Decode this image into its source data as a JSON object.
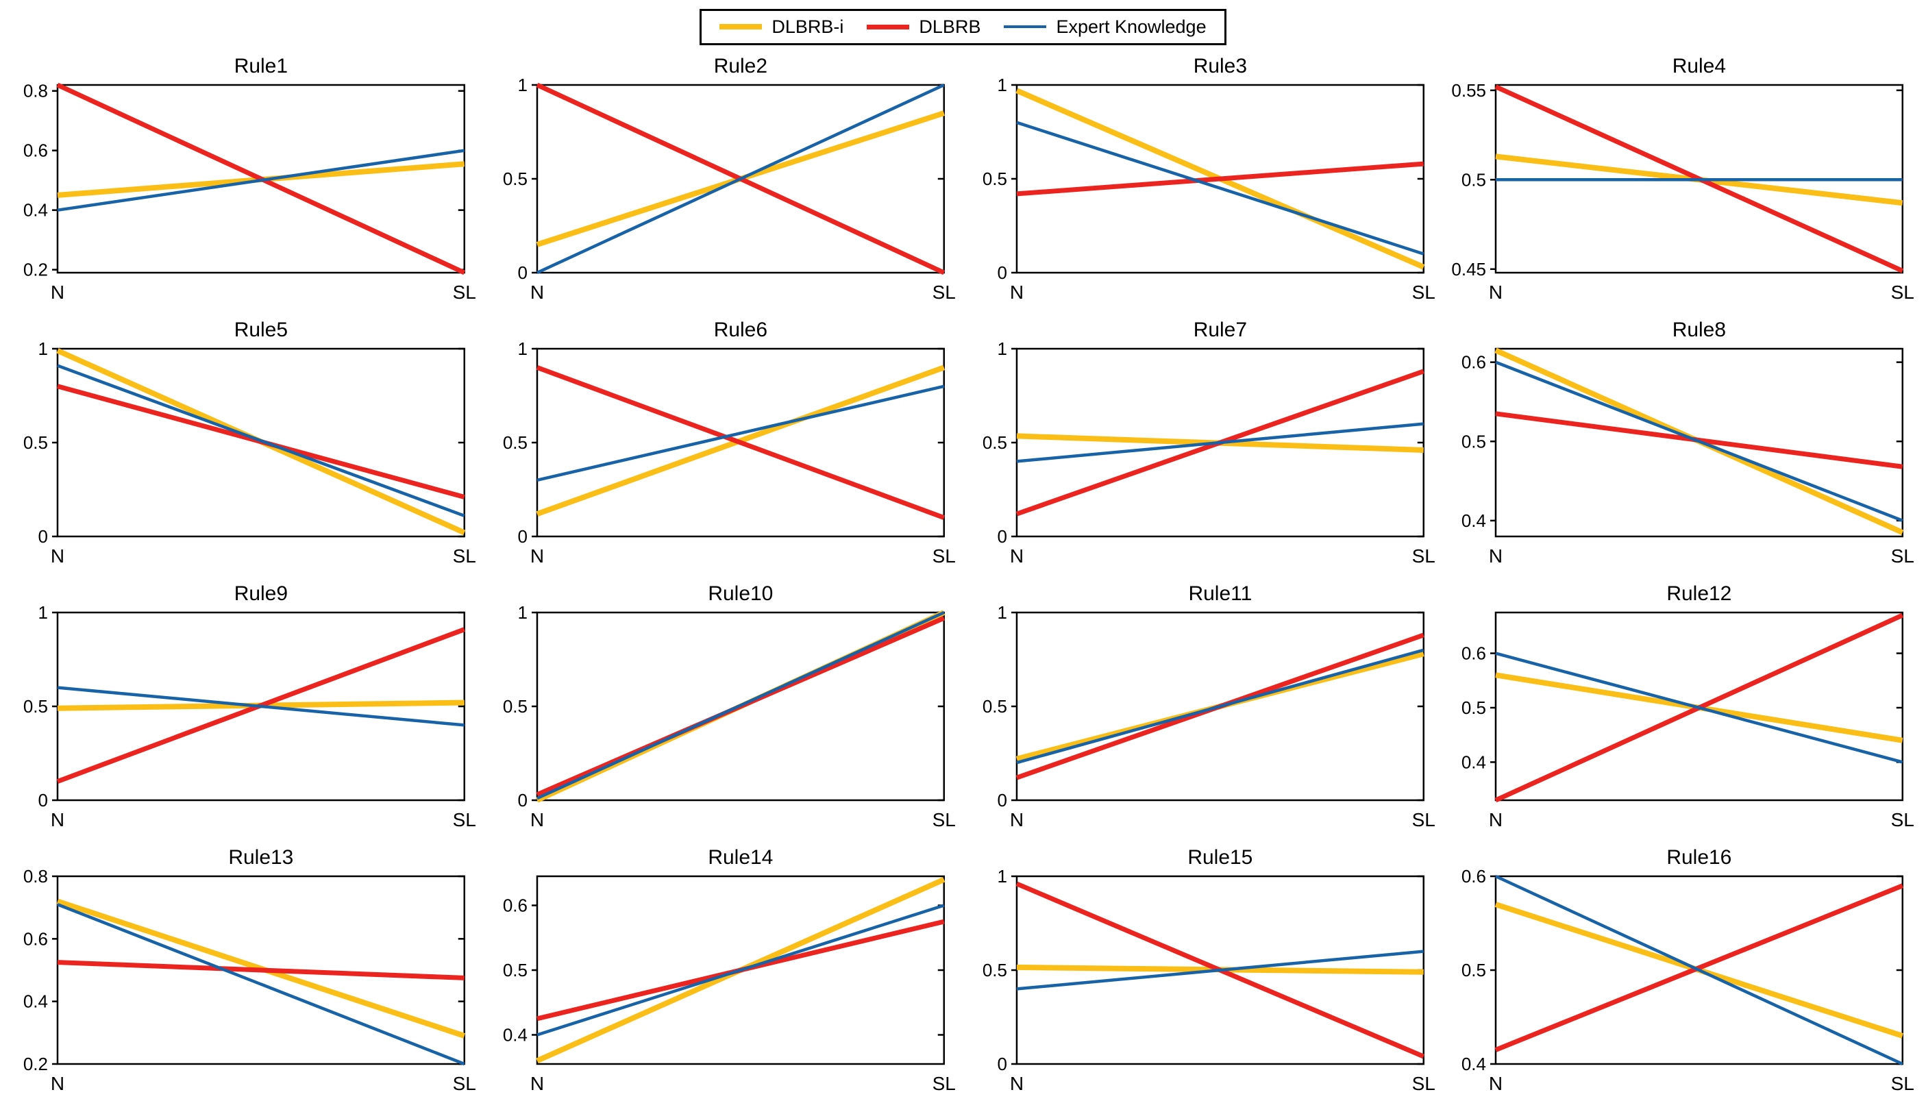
{
  "legend": {
    "items": [
      {
        "label": "DLBRB-i",
        "color": "#FBBE17",
        "line_width": 8
      },
      {
        "label": "DLBRB",
        "color": "#EB2420",
        "line_width": 7
      },
      {
        "label": "Expert Knowledge",
        "color": "#1863A8",
        "line_width": 4.5
      }
    ]
  },
  "chart_data": [
    {
      "type": "line",
      "title": "Rule1",
      "x_categories": [
        "N",
        "SL"
      ],
      "ylim": [
        0.19,
        0.82
      ],
      "yticks": [
        0.2,
        0.4,
        0.6,
        0.8
      ],
      "series": [
        {
          "name": "DLBRB-i",
          "values": [
            0.45,
            0.555
          ]
        },
        {
          "name": "DLBRB",
          "values": [
            0.82,
            0.19
          ]
        },
        {
          "name": "Expert Knowledge",
          "values": [
            0.4,
            0.6
          ]
        }
      ]
    },
    {
      "type": "line",
      "title": "Rule2",
      "x_categories": [
        "N",
        "SL"
      ],
      "ylim": [
        0,
        1
      ],
      "yticks": [
        0,
        0.5,
        1
      ],
      "series": [
        {
          "name": "DLBRB-i",
          "values": [
            0.15,
            0.85
          ]
        },
        {
          "name": "DLBRB",
          "values": [
            1.0,
            0.0
          ]
        },
        {
          "name": "Expert Knowledge",
          "values": [
            0.0,
            1.0
          ]
        }
      ]
    },
    {
      "type": "line",
      "title": "Rule3",
      "x_categories": [
        "N",
        "SL"
      ],
      "ylim": [
        0,
        1
      ],
      "yticks": [
        0,
        0.5,
        1
      ],
      "series": [
        {
          "name": "DLBRB-i",
          "values": [
            0.97,
            0.03
          ]
        },
        {
          "name": "DLBRB",
          "values": [
            0.42,
            0.58
          ]
        },
        {
          "name": "Expert Knowledge",
          "values": [
            0.8,
            0.1
          ]
        }
      ]
    },
    {
      "type": "line",
      "title": "Rule4",
      "x_categories": [
        "N",
        "SL"
      ],
      "ylim": [
        0.448,
        0.553
      ],
      "yticks": [
        0.45,
        0.5,
        0.55
      ],
      "series": [
        {
          "name": "DLBRB-i",
          "values": [
            0.513,
            0.487
          ]
        },
        {
          "name": "DLBRB",
          "values": [
            0.552,
            0.449
          ]
        },
        {
          "name": "Expert Knowledge",
          "values": [
            0.5,
            0.5
          ]
        }
      ]
    },
    {
      "type": "line",
      "title": "Rule5",
      "x_categories": [
        "N",
        "SL"
      ],
      "ylim": [
        0,
        1
      ],
      "yticks": [
        0,
        0.5,
        1
      ],
      "series": [
        {
          "name": "DLBRB-i",
          "values": [
            0.99,
            0.02
          ]
        },
        {
          "name": "DLBRB",
          "values": [
            0.8,
            0.21
          ]
        },
        {
          "name": "Expert Knowledge",
          "values": [
            0.91,
            0.11
          ]
        }
      ]
    },
    {
      "type": "line",
      "title": "Rule6",
      "x_categories": [
        "N",
        "SL"
      ],
      "ylim": [
        0,
        1
      ],
      "yticks": [
        0,
        0.5,
        1
      ],
      "series": [
        {
          "name": "DLBRB-i",
          "values": [
            0.12,
            0.9
          ]
        },
        {
          "name": "DLBRB",
          "values": [
            0.9,
            0.1
          ]
        },
        {
          "name": "Expert Knowledge",
          "values": [
            0.3,
            0.8
          ]
        }
      ]
    },
    {
      "type": "line",
      "title": "Rule7",
      "x_categories": [
        "N",
        "SL"
      ],
      "ylim": [
        0,
        1
      ],
      "yticks": [
        0,
        0.5,
        1
      ],
      "series": [
        {
          "name": "DLBRB-i",
          "values": [
            0.535,
            0.46
          ]
        },
        {
          "name": "DLBRB",
          "values": [
            0.12,
            0.88
          ]
        },
        {
          "name": "Expert Knowledge",
          "values": [
            0.4,
            0.6
          ]
        }
      ]
    },
    {
      "type": "line",
      "title": "Rule8",
      "x_categories": [
        "N",
        "SL"
      ],
      "ylim": [
        0.38,
        0.617
      ],
      "yticks": [
        0.4,
        0.5,
        0.6
      ],
      "series": [
        {
          "name": "DLBRB-i",
          "values": [
            0.615,
            0.385
          ]
        },
        {
          "name": "DLBRB",
          "values": [
            0.535,
            0.468
          ]
        },
        {
          "name": "Expert Knowledge",
          "values": [
            0.6,
            0.4
          ]
        }
      ]
    },
    {
      "type": "line",
      "title": "Rule9",
      "x_categories": [
        "N",
        "SL"
      ],
      "ylim": [
        0,
        1
      ],
      "yticks": [
        0,
        0.5,
        1
      ],
      "series": [
        {
          "name": "DLBRB-i",
          "values": [
            0.49,
            0.52
          ]
        },
        {
          "name": "DLBRB",
          "values": [
            0.1,
            0.91
          ]
        },
        {
          "name": "Expert Knowledge",
          "values": [
            0.6,
            0.4
          ]
        }
      ]
    },
    {
      "type": "line",
      "title": "Rule10",
      "x_categories": [
        "N",
        "SL"
      ],
      "ylim": [
        0,
        1
      ],
      "yticks": [
        0,
        0.5,
        1
      ],
      "series": [
        {
          "name": "DLBRB-i",
          "values": [
            0.0,
            1.0
          ]
        },
        {
          "name": "DLBRB",
          "values": [
            0.03,
            0.97
          ]
        },
        {
          "name": "Expert Knowledge",
          "values": [
            0.01,
            1.0
          ]
        }
      ]
    },
    {
      "type": "line",
      "title": "Rule11",
      "x_categories": [
        "N",
        "SL"
      ],
      "ylim": [
        0,
        1
      ],
      "yticks": [
        0,
        0.5,
        1
      ],
      "series": [
        {
          "name": "DLBRB-i",
          "values": [
            0.22,
            0.78
          ]
        },
        {
          "name": "DLBRB",
          "values": [
            0.12,
            0.88
          ]
        },
        {
          "name": "Expert Knowledge",
          "values": [
            0.2,
            0.8
          ]
        }
      ]
    },
    {
      "type": "line",
      "title": "Rule12",
      "x_categories": [
        "N",
        "SL"
      ],
      "ylim": [
        0.33,
        0.675
      ],
      "yticks": [
        0.4,
        0.5,
        0.6
      ],
      "series": [
        {
          "name": "DLBRB-i",
          "values": [
            0.56,
            0.44
          ]
        },
        {
          "name": "DLBRB",
          "values": [
            0.33,
            0.67
          ]
        },
        {
          "name": "Expert Knowledge",
          "values": [
            0.6,
            0.4
          ]
        }
      ]
    },
    {
      "type": "line",
      "title": "Rule13",
      "x_categories": [
        "N",
        "SL"
      ],
      "ylim": [
        0.2,
        0.8
      ],
      "yticks": [
        0.2,
        0.4,
        0.6,
        0.8
      ],
      "series": [
        {
          "name": "DLBRB-i",
          "values": [
            0.72,
            0.29
          ]
        },
        {
          "name": "DLBRB",
          "values": [
            0.525,
            0.475
          ]
        },
        {
          "name": "Expert Knowledge",
          "values": [
            0.71,
            0.2
          ]
        }
      ]
    },
    {
      "type": "line",
      "title": "Rule14",
      "x_categories": [
        "N",
        "SL"
      ],
      "ylim": [
        0.355,
        0.645
      ],
      "yticks": [
        0.4,
        0.5,
        0.6
      ],
      "series": [
        {
          "name": "DLBRB-i",
          "values": [
            0.36,
            0.64
          ]
        },
        {
          "name": "DLBRB",
          "values": [
            0.425,
            0.575
          ]
        },
        {
          "name": "Expert Knowledge",
          "values": [
            0.4,
            0.6
          ]
        }
      ]
    },
    {
      "type": "line",
      "title": "Rule15",
      "x_categories": [
        "N",
        "SL"
      ],
      "ylim": [
        0,
        1
      ],
      "yticks": [
        0,
        0.5,
        1
      ],
      "series": [
        {
          "name": "DLBRB-i",
          "values": [
            0.515,
            0.49
          ]
        },
        {
          "name": "DLBRB",
          "values": [
            0.96,
            0.04
          ]
        },
        {
          "name": "Expert Knowledge",
          "values": [
            0.4,
            0.6
          ]
        }
      ]
    },
    {
      "type": "line",
      "title": "Rule16",
      "x_categories": [
        "N",
        "SL"
      ],
      "ylim": [
        0.4,
        0.6
      ],
      "yticks": [
        0.4,
        0.5,
        0.6
      ],
      "series": [
        {
          "name": "DLBRB-i",
          "values": [
            0.57,
            0.43
          ]
        },
        {
          "name": "DLBRB",
          "values": [
            0.415,
            0.59
          ]
        },
        {
          "name": "Expert Knowledge",
          "values": [
            0.6,
            0.4
          ]
        }
      ]
    }
  ]
}
